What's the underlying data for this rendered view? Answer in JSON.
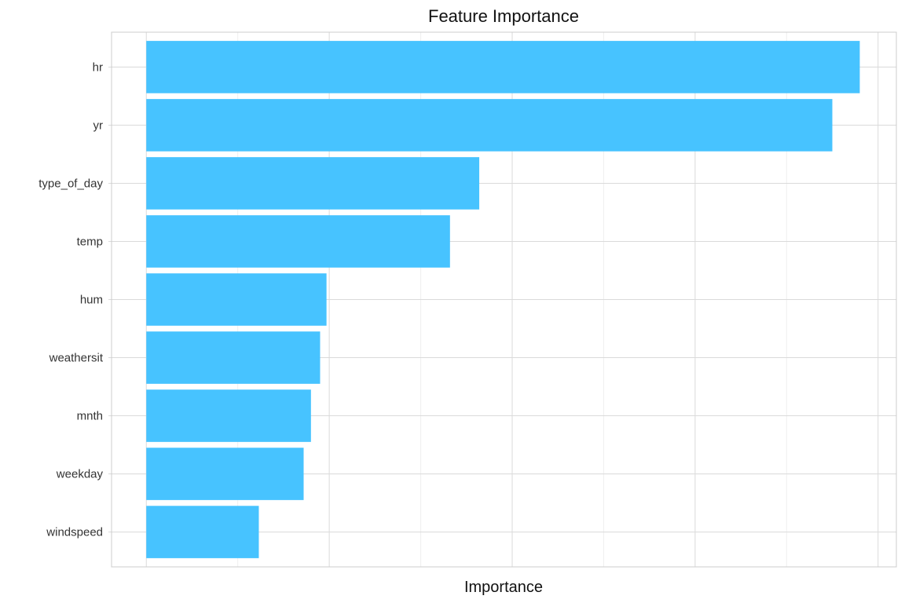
{
  "chart_data": {
    "type": "bar",
    "orientation": "horizontal",
    "title": "Feature Importance",
    "xlabel": "Importance",
    "ylabel": "",
    "categories": [
      "hr",
      "yr",
      "type_of_day",
      "temp",
      "hum",
      "weathersit",
      "mnth",
      "weekday",
      "windspeed"
    ],
    "values": [
      3.9,
      3.75,
      1.82,
      1.66,
      0.985,
      0.95,
      0.9,
      0.86,
      0.615
    ],
    "xlim": [
      -0.19,
      4.1
    ],
    "x_gridlines_major": [
      0,
      1,
      2,
      3,
      4
    ],
    "x_gridlines_minor": [
      0.5,
      1.5,
      2.5,
      3.5
    ],
    "x_tick_labels_shown": false,
    "grid": true,
    "legend": "none",
    "colors": {
      "bar": "#47C3FF",
      "grid_major": "#DADADA",
      "grid_minor": "#EFEFEF",
      "panel_border": "#CCCCCC"
    }
  }
}
